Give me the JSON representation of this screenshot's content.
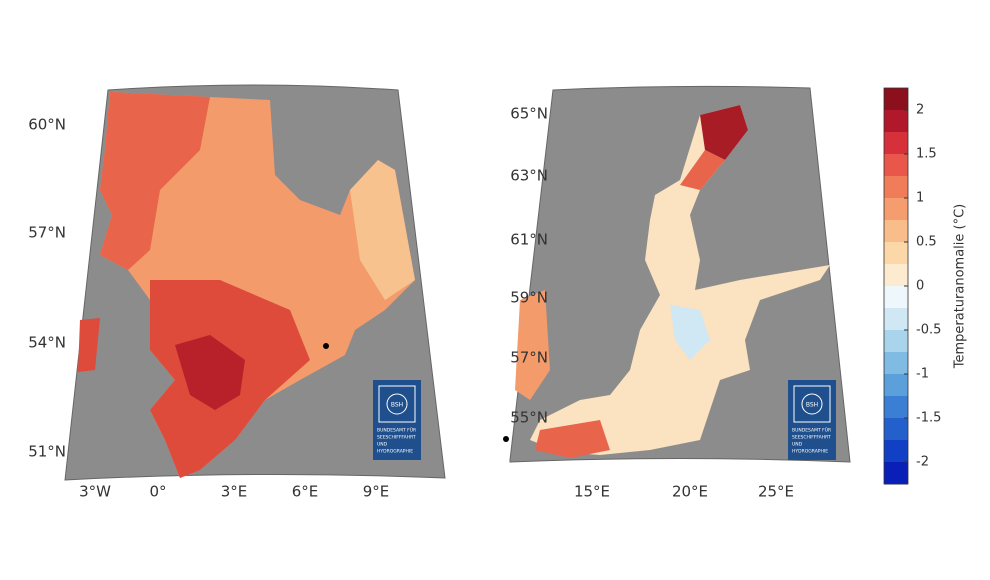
{
  "maps": [
    {
      "lat_labels": [
        "60°N",
        "57°N",
        "54°N",
        "51°N"
      ],
      "lon_labels": [
        "3°W",
        "0°",
        "3°E",
        "6°E",
        "9°E"
      ],
      "logo": {
        "abbr": "BSH",
        "lines": [
          "BUNDESAMT FÜR",
          "SEESCHIFFFAHRT",
          "UND",
          "HYDROGRAPHIE"
        ]
      }
    },
    {
      "lat_labels": [
        "65°N",
        "63°N",
        "61°N",
        "59°N",
        "57°N",
        "55°N"
      ],
      "lon_labels": [
        "15°E",
        "20°E",
        "25°E"
      ],
      "logo": {
        "abbr": "BSH",
        "lines": [
          "BUNDESAMT FÜR",
          "SEESCHIFFFAHRT",
          "UND",
          "HYDROGRAPHIE"
        ]
      }
    }
  ],
  "colorbar": {
    "label": "Temperaturanomalie (°C)",
    "ticks": [
      "2",
      "1.5",
      "1",
      "0.5",
      "0",
      "-0.5",
      "-1",
      "-1.5",
      "-2"
    ]
  }
}
